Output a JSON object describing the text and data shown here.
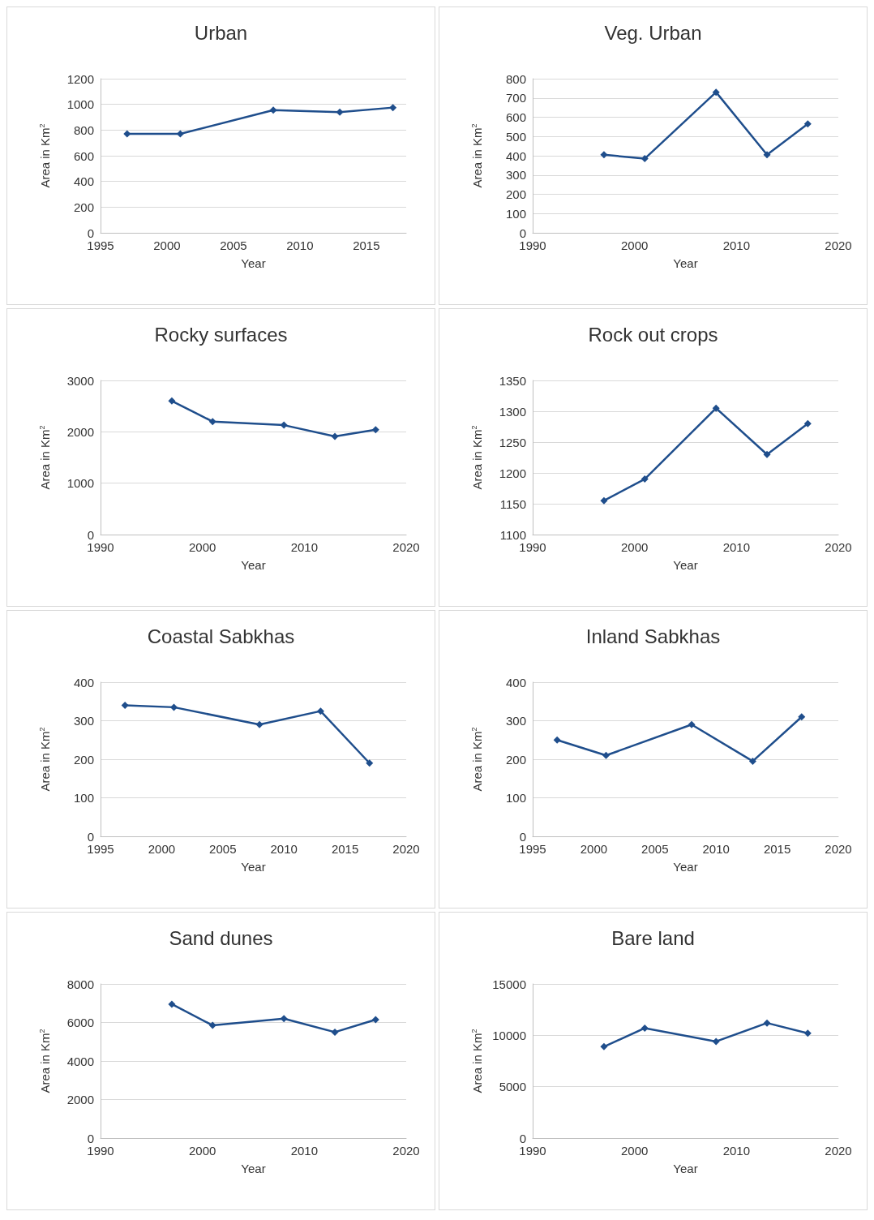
{
  "chart_data": [
    {
      "type": "line",
      "title": "Urban",
      "xlabel": "Year",
      "ylabel": "Area in Km$^{2}$",
      "x": [
        1997,
        2001,
        2008,
        2013,
        2017
      ],
      "series": [
        {
          "color": "#1f4e8c",
          "values": [
            770,
            770,
            955,
            940,
            975
          ]
        }
      ],
      "xlim": [
        1995,
        2018
      ],
      "xticks": [
        1995,
        2000,
        2005,
        2010,
        2015
      ],
      "ylim": [
        0,
        1200
      ],
      "yticks": [
        0,
        200,
        400,
        600,
        800,
        1000,
        1200
      ],
      "grid": "y",
      "marker": "diamond"
    },
    {
      "type": "line",
      "title": "Veg. Urban",
      "xlabel": "Year",
      "ylabel": "Area in Km$^{2}$",
      "x": [
        1997,
        2001,
        2008,
        2013,
        2017
      ],
      "series": [
        {
          "color": "#1f4e8c",
          "values": [
            405,
            385,
            730,
            405,
            565
          ]
        }
      ],
      "xlim": [
        1990,
        2020
      ],
      "xticks": [
        1990,
        2000,
        2010,
        2020
      ],
      "ylim": [
        0,
        800
      ],
      "yticks": [
        0,
        100,
        200,
        300,
        400,
        500,
        600,
        700,
        800
      ],
      "grid": "y",
      "marker": "diamond"
    },
    {
      "type": "line",
      "title": "Rocky surfaces",
      "xlabel": "Year",
      "ylabel": "Area in Km$^{2}$",
      "x": [
        1997,
        2001,
        2008,
        2013,
        2017
      ],
      "series": [
        {
          "color": "#1f4e8c",
          "values": [
            2600,
            2200,
            2130,
            1910,
            2040
          ]
        }
      ],
      "xlim": [
        1990,
        2020
      ],
      "xticks": [
        1990,
        2000,
        2010,
        2020
      ],
      "ylim": [
        0,
        3000
      ],
      "yticks": [
        0,
        1000,
        2000,
        3000
      ],
      "grid": "y",
      "marker": "diamond"
    },
    {
      "type": "line",
      "title": "Rock out crops",
      "xlabel": "Year",
      "ylabel": "Area in Km$^{2}$",
      "x": [
        1997,
        2001,
        2008,
        2013,
        2017
      ],
      "series": [
        {
          "color": "#1f4e8c",
          "values": [
            1155,
            1190,
            1305,
            1230,
            1280
          ]
        }
      ],
      "xlim": [
        1990,
        2020
      ],
      "xticks": [
        1990,
        2000,
        2010,
        2020
      ],
      "ylim": [
        1100,
        1350
      ],
      "yticks": [
        1100,
        1150,
        1200,
        1250,
        1300,
        1350
      ],
      "grid": "y",
      "marker": "diamond"
    },
    {
      "type": "line",
      "title": "Coastal Sabkhas",
      "xlabel": "Year",
      "ylabel": "Area in Km$^{2}$",
      "x": [
        1997,
        2001,
        2008,
        2013,
        2017
      ],
      "series": [
        {
          "color": "#1f4e8c",
          "values": [
            340,
            335,
            290,
            325,
            190
          ]
        }
      ],
      "xlim": [
        1995,
        2020
      ],
      "xticks": [
        1995,
        2000,
        2005,
        2010,
        2015,
        2020
      ],
      "ylim": [
        0,
        400
      ],
      "yticks": [
        0,
        100,
        200,
        300,
        400
      ],
      "grid": "y",
      "marker": "diamond"
    },
    {
      "type": "line",
      "title": "Inland Sabkhas",
      "xlabel": "Year",
      "ylabel": "Area in Km$^{2}$",
      "x": [
        1997,
        2001,
        2008,
        2013,
        2017
      ],
      "series": [
        {
          "color": "#1f4e8c",
          "values": [
            250,
            210,
            290,
            195,
            310
          ]
        }
      ],
      "xlim": [
        1995,
        2020
      ],
      "xticks": [
        1995,
        2000,
        2005,
        2010,
        2015,
        2020
      ],
      "ylim": [
        0,
        400
      ],
      "yticks": [
        0,
        100,
        200,
        300,
        400
      ],
      "grid": "y",
      "marker": "diamond"
    },
    {
      "type": "line",
      "title": "Sand dunes",
      "xlabel": "Year",
      "ylabel": "Area in Km$^{2}$",
      "x": [
        1997,
        2001,
        2008,
        2013,
        2017
      ],
      "series": [
        {
          "color": "#1f4e8c",
          "values": [
            6950,
            5850,
            6200,
            5500,
            6150
          ]
        }
      ],
      "xlim": [
        1990,
        2020
      ],
      "xticks": [
        1990,
        2000,
        2010,
        2020
      ],
      "ylim": [
        0,
        8000
      ],
      "yticks": [
        0,
        2000,
        4000,
        6000,
        8000
      ],
      "grid": "y",
      "marker": "diamond"
    },
    {
      "type": "line",
      "title": "Bare land",
      "xlabel": "Year",
      "ylabel": "Area in Km$^{2}$",
      "x": [
        1997,
        2001,
        2008,
        2013,
        2017
      ],
      "series": [
        {
          "color": "#1f4e8c",
          "values": [
            8900,
            10700,
            9400,
            11200,
            10200
          ]
        }
      ],
      "xlim": [
        1990,
        2020
      ],
      "xticks": [
        1990,
        2000,
        2010,
        2020
      ],
      "ylim": [
        0,
        15000
      ],
      "yticks": [
        0,
        5000,
        10000,
        15000
      ],
      "grid": "y",
      "marker": "diamond"
    }
  ]
}
